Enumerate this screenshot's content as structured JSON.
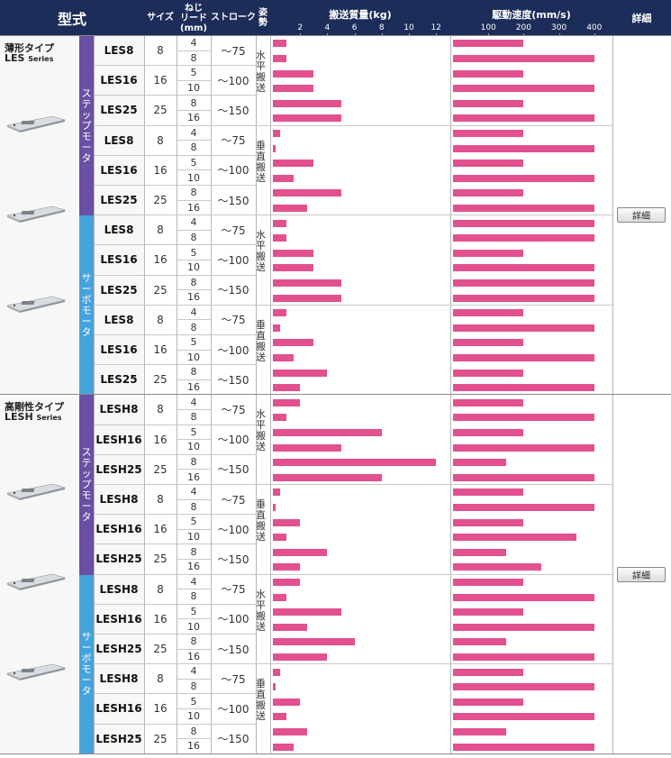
{
  "headers": {
    "model": "型式",
    "size": "サイズ",
    "lead": "ねじ\nリード\n(mm)",
    "stroke": "ストローク",
    "attitude": "姿勢",
    "mass": "搬送質量(kg)",
    "speed": "駆動速度(mm/s)",
    "detail": "詳細"
  },
  "mass_axis": {
    "ticks": [
      "2",
      "4",
      "6",
      "8",
      "10",
      "12"
    ],
    "max": 12
  },
  "speed_axis": {
    "ticks": [
      "100",
      "200",
      "300",
      "400"
    ],
    "max": 400
  },
  "series": [
    {
      "name_ja": "薄形タイプ",
      "name_en": "LES",
      "name_en_suffix": "Series",
      "detail_label": "詳細"
    },
    {
      "name_ja": "高剛性タイプ",
      "name_en": "LESH",
      "name_en_suffix": "Series",
      "detail_label": "詳細"
    }
  ],
  "motors": [
    "ステップモータ",
    "サーボモータ",
    "ステップモータ",
    "サーボモータ"
  ],
  "attitudes": [
    "水平搬送",
    "垂直搬送"
  ],
  "stroke_values": [
    "～75",
    "～100",
    "～150"
  ],
  "models": [
    {
      "name": "LES8",
      "size": "8",
      "leads": [
        "4",
        "8"
      ],
      "stroke": "～75"
    },
    {
      "name": "LES16",
      "size": "16",
      "leads": [
        "5",
        "10"
      ],
      "stroke": "～100"
    },
    {
      "name": "LES25",
      "size": "25",
      "leads": [
        "8",
        "16"
      ],
      "stroke": "～150"
    },
    {
      "name": "LES8",
      "size": "8",
      "leads": [
        "4",
        "8"
      ],
      "stroke": "～75"
    },
    {
      "name": "LES16",
      "size": "16",
      "leads": [
        "5",
        "10"
      ],
      "stroke": "～100"
    },
    {
      "name": "LES25",
      "size": "25",
      "leads": [
        "8",
        "16"
      ],
      "stroke": "～150"
    },
    {
      "name": "LES8",
      "size": "8",
      "leads": [
        "4",
        "8"
      ],
      "stroke": "～75"
    },
    {
      "name": "LES16",
      "size": "16",
      "leads": [
        "5",
        "10"
      ],
      "stroke": "～100"
    },
    {
      "name": "LES25",
      "size": "25",
      "leads": [
        "8",
        "16"
      ],
      "stroke": "～150"
    },
    {
      "name": "LES8",
      "size": "8",
      "leads": [
        "4",
        "8"
      ],
      "stroke": "～75"
    },
    {
      "name": "LES16",
      "size": "16",
      "leads": [
        "5",
        "10"
      ],
      "stroke": "～100"
    },
    {
      "name": "LES25",
      "size": "25",
      "leads": [
        "8",
        "16"
      ],
      "stroke": "～150"
    },
    {
      "name": "LESH8",
      "size": "8",
      "leads": [
        "4",
        "8"
      ],
      "stroke": "～75"
    },
    {
      "name": "LESH16",
      "size": "16",
      "leads": [
        "5",
        "10"
      ],
      "stroke": "～100"
    },
    {
      "name": "LESH25",
      "size": "25",
      "leads": [
        "8",
        "16"
      ],
      "stroke": "～150"
    },
    {
      "name": "LESH8",
      "size": "8",
      "leads": [
        "4",
        "8"
      ],
      "stroke": "～75"
    },
    {
      "name": "LESH16",
      "size": "16",
      "leads": [
        "5",
        "10"
      ],
      "stroke": "～100"
    },
    {
      "name": "LESH25",
      "size": "25",
      "leads": [
        "8",
        "16"
      ],
      "stroke": "～150"
    },
    {
      "name": "LESH8",
      "size": "8",
      "leads": [
        "4",
        "8"
      ],
      "stroke": "～75"
    },
    {
      "name": "LESH16",
      "size": "16",
      "leads": [
        "5",
        "10"
      ],
      "stroke": "～100"
    },
    {
      "name": "LESH25",
      "size": "25",
      "leads": [
        "8",
        "16"
      ],
      "stroke": "～150"
    },
    {
      "name": "LESH8",
      "size": "8",
      "leads": [
        "4",
        "8"
      ],
      "stroke": "～75"
    },
    {
      "name": "LESH16",
      "size": "16",
      "leads": [
        "5",
        "10"
      ],
      "stroke": "～100"
    },
    {
      "name": "LESH25",
      "size": "25",
      "leads": [
        "8",
        "16"
      ],
      "stroke": "～150"
    }
  ],
  "chart_data": {
    "type": "bar",
    "mass_kg": [
      1,
      1,
      3,
      3,
      5,
      5,
      0.5,
      0.2,
      3,
      1.5,
      5,
      2.5,
      1,
      1,
      3,
      3,
      5,
      5,
      1,
      0.5,
      3,
      1.5,
      4,
      2,
      2,
      1,
      8,
      5,
      12,
      8,
      0.5,
      0.2,
      2,
      1,
      4,
      2,
      2,
      1,
      5,
      2.5,
      6,
      4,
      0.5,
      0.2,
      2,
      1,
      2.5,
      1.5
    ],
    "speed_mm_s": [
      [
        0,
        200
      ],
      [
        0,
        400
      ],
      [
        0,
        200
      ],
      [
        0,
        400
      ],
      [
        0,
        200
      ],
      [
        0,
        400
      ],
      [
        0,
        200
      ],
      [
        0,
        400
      ],
      [
        0,
        200
      ],
      [
        0,
        400
      ],
      [
        0,
        200
      ],
      [
        0,
        400
      ],
      [
        0,
        400
      ],
      [
        0,
        400
      ],
      [
        0,
        200
      ],
      [
        0,
        400
      ],
      [
        0,
        400
      ],
      [
        0,
        400
      ],
      [
        0,
        200
      ],
      [
        0,
        400
      ],
      [
        0,
        200
      ],
      [
        0,
        400
      ],
      [
        0,
        200
      ],
      [
        0,
        400
      ],
      [
        0,
        200
      ],
      [
        0,
        400
      ],
      [
        0,
        200
      ],
      [
        0,
        400
      ],
      [
        0,
        150
      ],
      [
        0,
        400
      ],
      [
        0,
        200
      ],
      [
        0,
        400
      ],
      [
        0,
        200
      ],
      [
        0,
        350
      ],
      [
        0,
        150
      ],
      [
        0,
        250
      ],
      [
        0,
        200
      ],
      [
        0,
        400
      ],
      [
        0,
        200
      ],
      [
        0,
        400
      ],
      [
        0,
        150
      ],
      [
        0,
        400
      ],
      [
        0,
        200
      ],
      [
        0,
        400
      ],
      [
        0,
        200
      ],
      [
        0,
        400
      ],
      [
        0,
        150
      ],
      [
        0,
        400
      ]
    ]
  }
}
